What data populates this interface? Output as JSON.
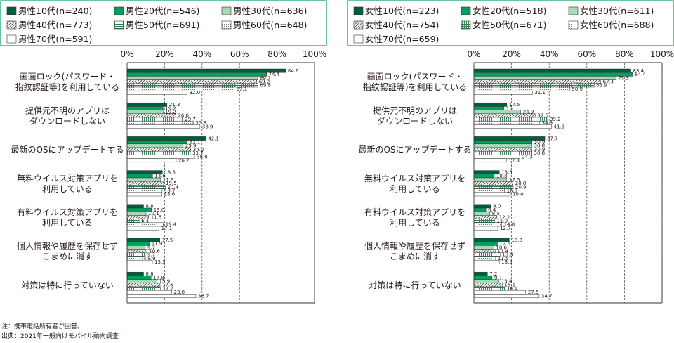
{
  "chart_data": [
    {
      "type": "bar",
      "orientation": "horizontal",
      "categories": [
        "画面ロック(パスワード・\n指紋認証等)を利用している",
        "提供元不明のアプリは\nダウンロードしない",
        "最新のOSにアップデートする",
        "無料ウイルス対策アプリを\n利用している",
        "有料ウイルス対策アプリを\n利用している",
        "個人情報や履歴を保存せず\nこまめに消す",
        "対策は特に行っていない"
      ],
      "series": [
        {
          "name": "男性10代(n=240)",
          "values": [
            84.6,
            21.3,
            42.1,
            18.8,
            8.8,
            17.5,
            8.8
          ],
          "labels": [
            "84.6",
            "21.3",
            "42.1",
            "18.8",
            "8.8",
            "17.5",
            "8.8"
          ]
        },
        {
          "name": "男性20代(n=546)",
          "values": [
            74.4,
            19.2,
            32.1,
            13.6,
            13.0,
            11.9,
            12.8
          ],
          "labels": [
            "74.4",
            "19.2",
            "32.1",
            "13.6",
            "13.0",
            "11.9",
            "12.8"
          ]
        },
        {
          "name": "男性30代(n=636)",
          "values": [
            69.7,
            19.2,
            29.9,
            17.9,
            10.1,
            9.7,
            15.9
          ],
          "labels": [
            "69.7",
            "19.2",
            "29.9",
            "17.9",
            "10.1",
            "9.7",
            "15.9"
          ]
        },
        {
          "name": "男性40代(n=773)",
          "values": [
            69.2,
            26.0,
            34.0,
            19.5,
            11.5,
            10.6,
            17.6
          ],
          "labels": [
            "69.2",
            "26.0",
            "34.0",
            "19.5",
            "11.5",
            "10.6",
            "17.6"
          ]
        },
        {
          "name": "男性50代(n=691)",
          "values": [
            69.8,
            29.7,
            33.7,
            20.4,
            6.4,
            9.7,
            17.7
          ],
          "labels": [
            "69.8",
            "29.7",
            "33.7",
            "20.4",
            "6.4",
            "9.7",
            "17.7"
          ]
        },
        {
          "name": "男性60代(n=648)",
          "values": [
            57.1,
            35.3,
            36.0,
            18.7,
            19.4,
            9.9,
            23.8
          ],
          "labels": [
            "57.1",
            "35.3",
            "36.0",
            "18.7",
            "19.4",
            "9.9",
            "23.8"
          ]
        },
        {
          "name": "男性70代(n=591)",
          "values": [
            32.0,
            38.9,
            26.2,
            18.6,
            17.1,
            13.5,
            36.7
          ],
          "labels": [
            "32.0",
            "38.9",
            "26.2",
            "18.6",
            "17.1",
            "13.5",
            "36.7"
          ]
        }
      ],
      "x_ticks": [
        "0%",
        "20%",
        "40%",
        "60%",
        "80%",
        "100%"
      ],
      "xlim": [
        0,
        100
      ],
      "grid": "dashed vertical at 20% steps",
      "legend": "top"
    },
    {
      "type": "bar",
      "orientation": "horizontal",
      "categories": [
        "画面ロック(パスワード・\n指紋認証等)を利用している",
        "提供元不明のアプリは\nダウンロードしない",
        "最新のOSにアップデートする",
        "無料ウイルス対策アプリを\n利用している",
        "有料ウイルス対策アプリを\n利用している",
        "個人情報や履歴を保存せず\nこまめに消す",
        "対策は特に行っていない"
      ],
      "series": [
        {
          "name": "女性10代(n=223)",
          "values": [
            83.4,
            17.5,
            37.7,
            13.5,
            9.0,
            18.8,
            7.2
          ],
          "labels": [
            "83.4",
            "17.5",
            "37.7",
            "13.5",
            "9.0",
            "18.8",
            "7.2"
          ]
        },
        {
          "name": "女性20代(n=518)",
          "values": [
            84.4,
            16.0,
            30.9,
            10.8,
            6.4,
            12.5,
            9.7
          ],
          "labels": [
            "84.4",
            "16",
            "30.9",
            "10.8",
            "6.4",
            "12.5",
            "9.7"
          ]
        },
        {
          "name": "女性30代(n=611)",
          "values": [
            75.5,
            24.9,
            30.8,
            17.5,
            8.5,
            10.6,
            13.4
          ],
          "labels": [
            "75.5",
            "24.9",
            "30.8",
            "17.5",
            "8.5",
            "10.6",
            "13.4"
          ]
        },
        {
          "name": "女性40代(n=754)",
          "values": [
            67.4,
            32.6,
            30.9,
            20.8,
            12.2,
            11.4,
            15.1
          ],
          "labels": [
            "67.4",
            "32.6",
            "30.9",
            "20.8",
            "12.2",
            "11.4",
            "15.1"
          ]
        },
        {
          "name": "女性50代(n=671)",
          "values": [
            63.9,
            39.2,
            30.8,
            20.9,
            11.0,
            13.9,
            16.4
          ],
          "labels": [
            "63.9",
            "39.2",
            "30.8",
            "20.9",
            "11.0",
            "13.9",
            "16.4"
          ]
        },
        {
          "name": "女性60代(n=688)",
          "values": [
            50.9,
            34.9,
            24.3,
            16.3,
            14.8,
            11.5,
            27.5
          ],
          "labels": [
            "50.9",
            "34.9",
            "24.3",
            "16.3",
            "14.8",
            "11.5",
            "27.5"
          ]
        },
        {
          "name": "女性70代(n=659)",
          "values": [
            31.1,
            41.3,
            17.3,
            19.4,
            12.7,
            13.5,
            34.7
          ],
          "labels": [
            "31.1",
            "41.3",
            "17.3",
            "19.4",
            "12.7",
            "13.5",
            "34.7"
          ]
        }
      ],
      "x_ticks": [
        "0%",
        "20%",
        "40%",
        "60%",
        "80%",
        "100%"
      ],
      "xlim": [
        0,
        100
      ],
      "grid": "dashed vertical at 20% steps",
      "legend": "top"
    }
  ],
  "colors": {
    "series": [
      "#005f3a",
      "#00a060",
      "#a6d9b5",
      "#ffffff",
      "#ffffff",
      "#ffffff",
      "#ffffff"
    ],
    "patterns": [
      "solid",
      "solid",
      "solid",
      "diagonal",
      "grid",
      "dots",
      "blank"
    ],
    "legend_border": "#00a060",
    "text": "#231815"
  },
  "notes": {
    "note": "注：携帯電話所有者が回答。",
    "source": "出典：2021年一般向けモバイル動向調査"
  }
}
